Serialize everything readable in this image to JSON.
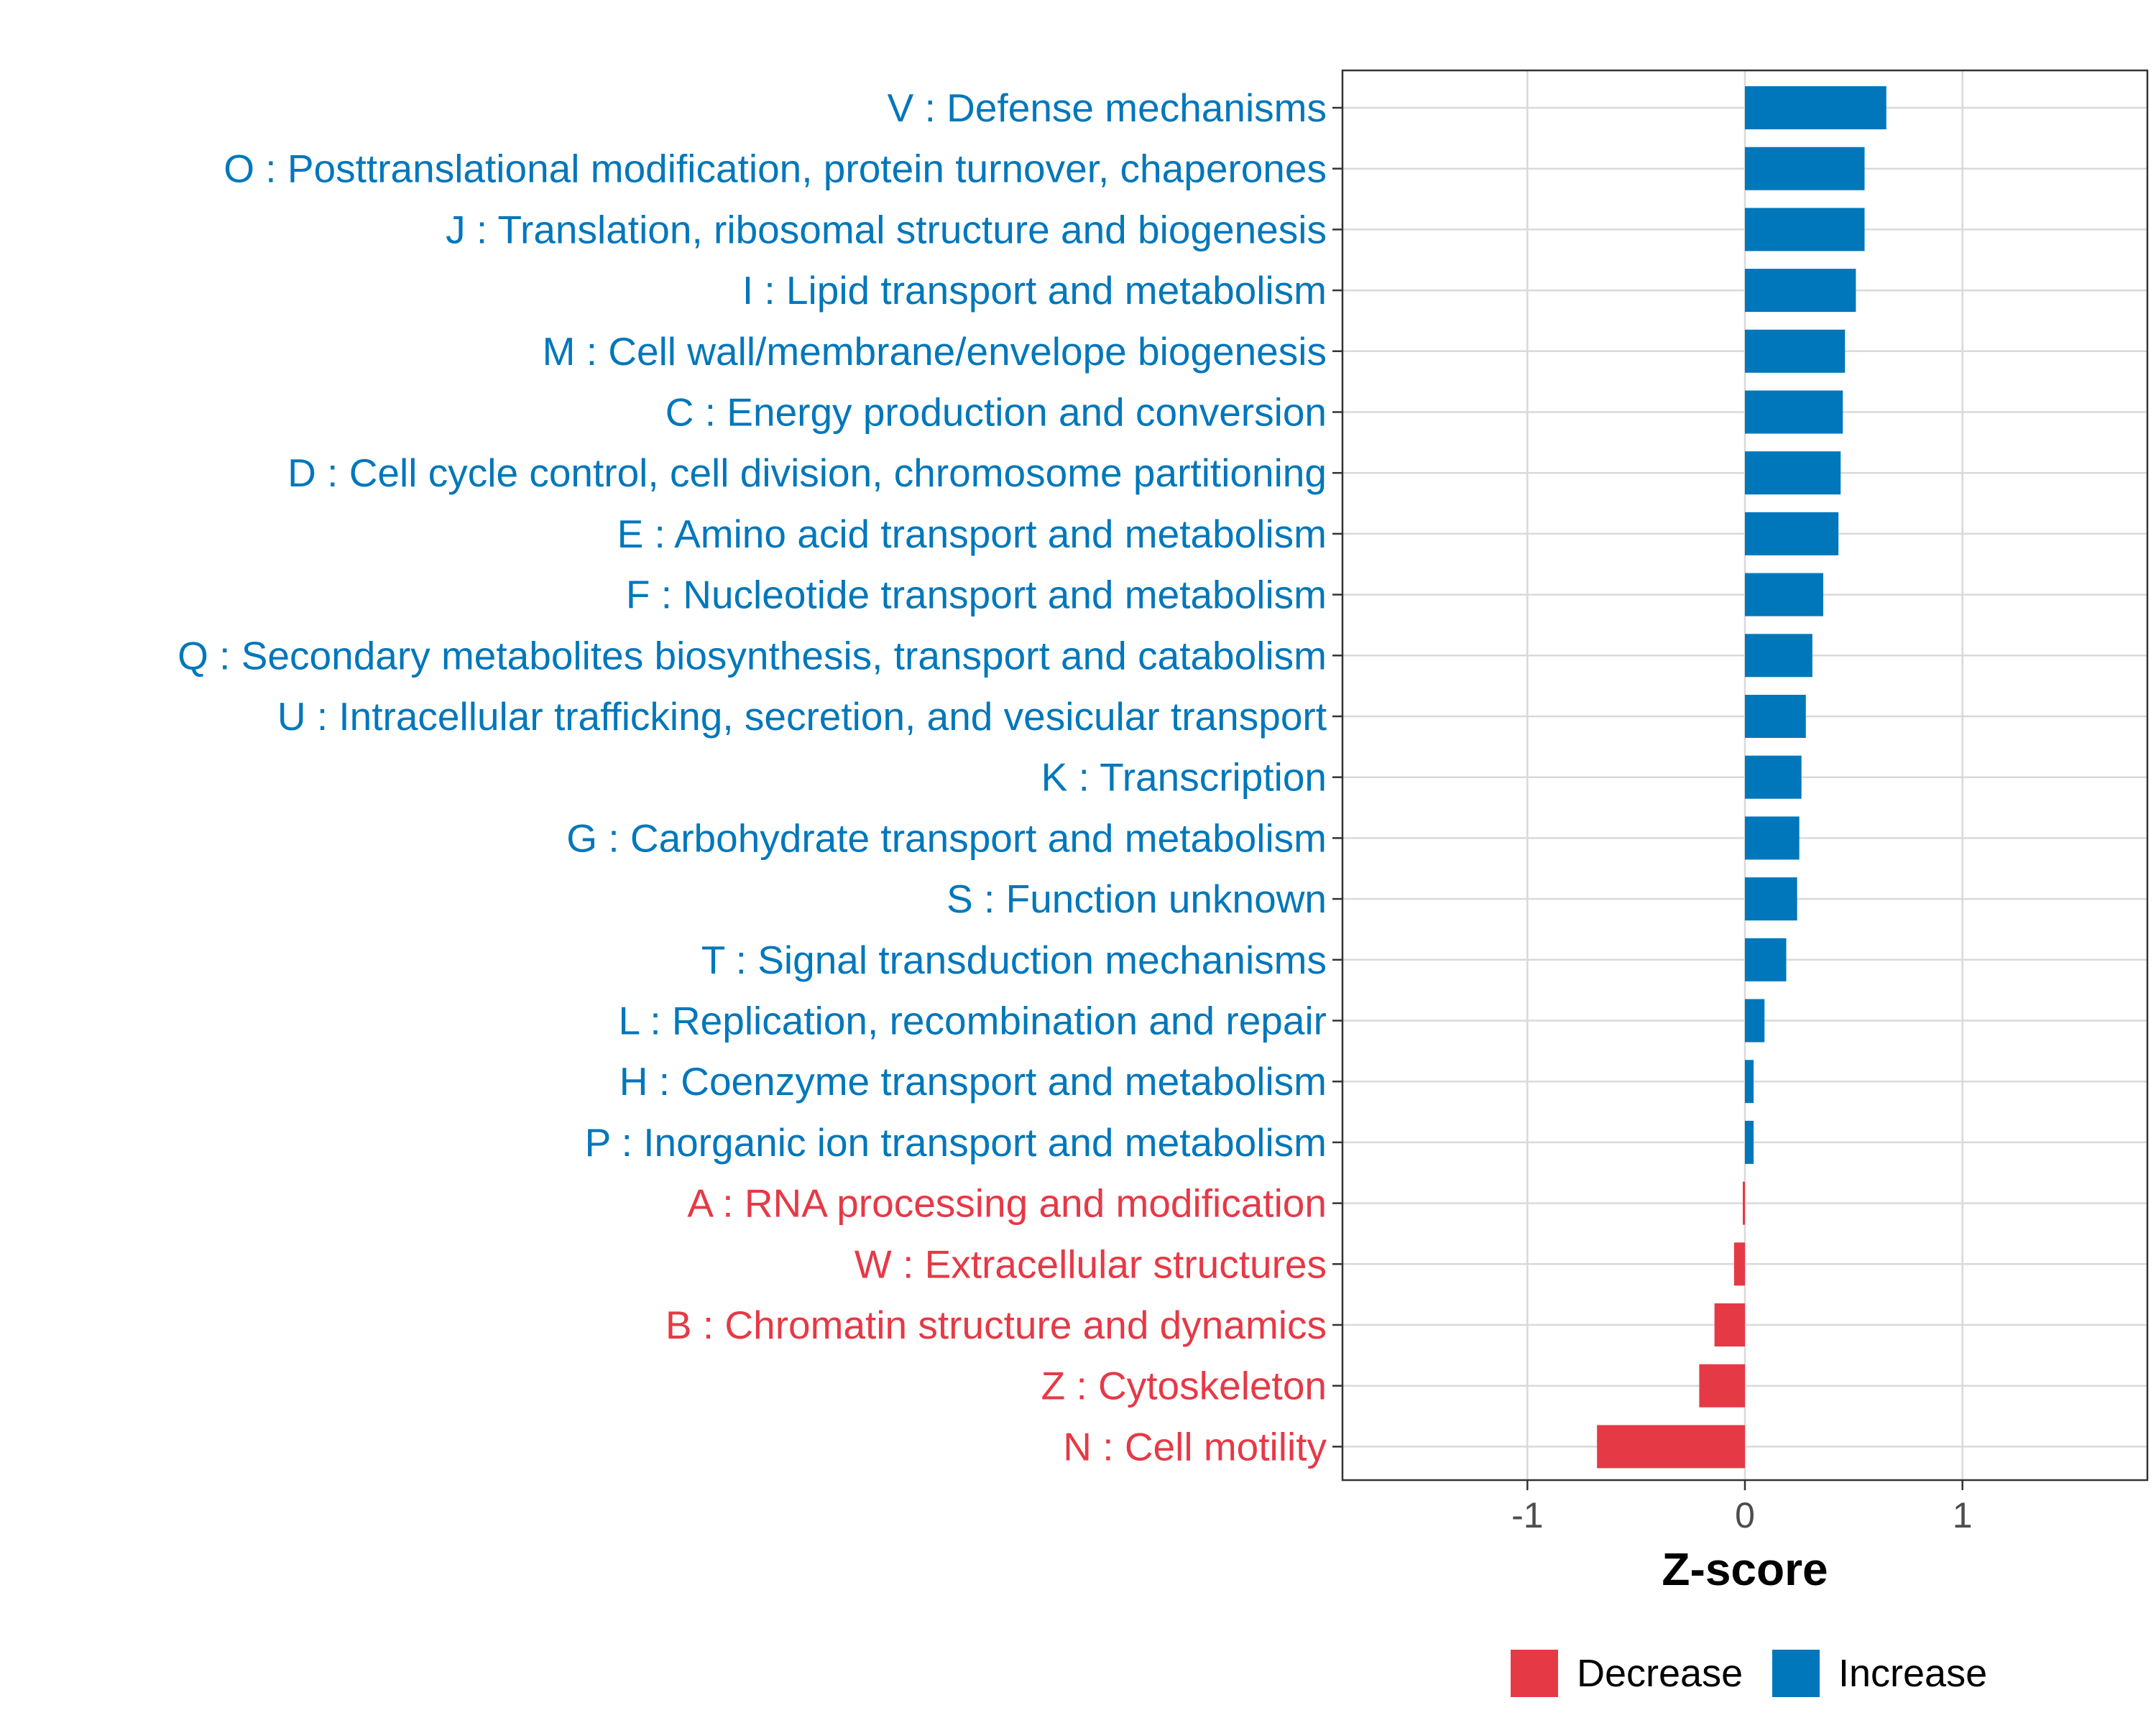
{
  "chart_data": {
    "type": "bar",
    "orientation": "horizontal",
    "title": "",
    "xlabel": "Z-score",
    "ylabel": "",
    "xlim": [
      -1.85,
      1.85
    ],
    "xticks": [
      -1,
      0,
      1
    ],
    "xtick_labels": [
      "-1",
      "0",
      "1"
    ],
    "grid": true,
    "legend_position": "bottom",
    "legend": [
      {
        "name": "Decrease",
        "color": "#E63946"
      },
      {
        "name": "Increase",
        "color": "#0077BB"
      }
    ],
    "categories": [
      "V : Defense mechanisms",
      "O : Posttranslational modification, protein turnover, chaperones",
      "J : Translation, ribosomal structure and biogenesis",
      "I : Lipid transport and metabolism",
      "M : Cell wall/membrane/envelope biogenesis",
      "C : Energy production and conversion",
      "D : Cell cycle control, cell division, chromosome partitioning",
      "E : Amino acid transport and metabolism",
      "F : Nucleotide transport and metabolism",
      "Q : Secondary metabolites biosynthesis, transport and catabolism",
      "U : Intracellular trafficking, secretion, and vesicular transport",
      "K : Transcription",
      "G : Carbohydrate transport and metabolism",
      "S : Function unknown",
      "T : Signal transduction mechanisms",
      "L : Replication, recombination and repair",
      "H : Coenzyme transport and metabolism",
      "P : Inorganic ion transport and metabolism",
      "A : RNA processing and modification",
      "W : Extracellular structures",
      "B : Chromatin structure and dynamics",
      "Z : Cytoskeleton",
      "N : Cell motility"
    ],
    "values": [
      0.65,
      0.55,
      0.55,
      0.51,
      0.46,
      0.45,
      0.44,
      0.43,
      0.36,
      0.31,
      0.28,
      0.26,
      0.25,
      0.24,
      0.19,
      0.09,
      0.04,
      0.04,
      -0.01,
      -0.05,
      -0.14,
      -0.21,
      -0.68
    ],
    "groups": [
      "Increase",
      "Increase",
      "Increase",
      "Increase",
      "Increase",
      "Increase",
      "Increase",
      "Increase",
      "Increase",
      "Increase",
      "Increase",
      "Increase",
      "Increase",
      "Increase",
      "Increase",
      "Increase",
      "Increase",
      "Increase",
      "Decrease",
      "Decrease",
      "Decrease",
      "Decrease",
      "Decrease"
    ]
  }
}
